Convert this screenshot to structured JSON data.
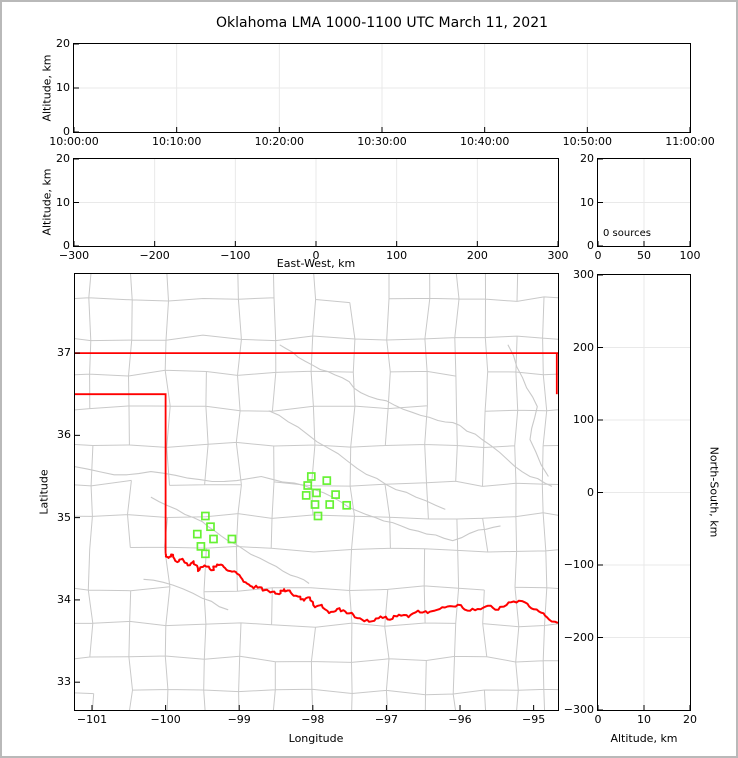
{
  "title": "Oklahoma LMA 1000-1100 UTC March 11, 2021",
  "colors": {
    "spine": "#000000",
    "grid": "#e9e9e9",
    "county": "#c9c9c9",
    "river": "#c9c9c9",
    "state_border": "#ff0000",
    "marker": "#66f233",
    "frame_border": "#b9b9b9"
  },
  "panels": {
    "time_height": {
      "ylabel": "Altitude, km",
      "xticks": [
        "10:00:00",
        "10:10:00",
        "10:20:00",
        "10:30:00",
        "10:40:00",
        "10:50:00",
        "11:00:00"
      ],
      "yticks": [
        0,
        10,
        20
      ]
    },
    "ew_height": {
      "xlabel": "East-West, km",
      "ylabel": "Altitude, km",
      "xticks": [
        -300,
        -200,
        -100,
        0,
        100,
        200,
        300
      ],
      "yticks": [
        0,
        10,
        20
      ]
    },
    "alt_hist": {
      "annotation": "0 sources",
      "xticks": [
        0,
        50,
        100
      ],
      "yticks": [
        0,
        10,
        20
      ]
    },
    "map": {
      "xlabel": "Longitude",
      "ylabel": "Latitude",
      "xticks": [
        -101,
        -100,
        -99,
        -98,
        -97,
        -96,
        -95
      ],
      "yticks": [
        33,
        34,
        35,
        36,
        37
      ],
      "extent": {
        "lon_min": -101.231,
        "lon_max": -94.669,
        "lat_min": 32.662,
        "lat_max": 37.961
      }
    },
    "ns_height": {
      "xlabel": "Altitude, km",
      "ylabel": "North-South, km",
      "xticks": [
        0,
        10,
        20
      ],
      "yticks": [
        300,
        200,
        100,
        0,
        -100,
        -200,
        -300
      ]
    }
  },
  "map_layers": {
    "counties": {
      "type": "procedural-grid",
      "seed": 20210311,
      "color": "#c9c9c9"
    },
    "state_border": [
      [
        [
          -101.231,
          37.0
        ],
        [
          -94.669,
          37.0
        ]
      ],
      [
        [
          -101.231,
          36.5
        ],
        [
          -100.0,
          36.5
        ],
        [
          -100.0,
          34.563
        ]
      ],
      [
        [
          -94.685,
          37.0
        ],
        [
          -94.685,
          36.5
        ]
      ]
    ],
    "red_river": [
      [
        -100.0,
        34.563
      ],
      [
        -99.96,
        34.51
      ],
      [
        -99.9,
        34.55
      ],
      [
        -99.84,
        34.46
      ],
      [
        -99.77,
        34.5
      ],
      [
        -99.7,
        34.42
      ],
      [
        -99.62,
        34.47
      ],
      [
        -99.56,
        34.35
      ],
      [
        -99.47,
        34.42
      ],
      [
        -99.38,
        34.36
      ],
      [
        -99.3,
        34.43
      ],
      [
        -99.21,
        34.4
      ],
      [
        -99.12,
        34.35
      ],
      [
        -99.03,
        34.32
      ],
      [
        -98.94,
        34.22
      ],
      [
        -98.85,
        34.17
      ],
      [
        -98.75,
        34.15
      ],
      [
        -98.65,
        34.12
      ],
      [
        -98.55,
        34.1
      ],
      [
        -98.46,
        34.07
      ],
      [
        -98.39,
        34.13
      ],
      [
        -98.3,
        34.09
      ],
      [
        -98.2,
        34.04
      ],
      [
        -98.12,
        33.99
      ],
      [
        -98.04,
        34.03
      ],
      [
        -97.97,
        33.91
      ],
      [
        -97.88,
        33.94
      ],
      [
        -97.78,
        33.84
      ],
      [
        -97.67,
        33.89
      ],
      [
        -97.56,
        33.86
      ],
      [
        -97.45,
        33.82
      ],
      [
        -97.33,
        33.76
      ],
      [
        -97.2,
        33.74
      ],
      [
        -97.08,
        33.8
      ],
      [
        -96.95,
        33.76
      ],
      [
        -96.83,
        33.82
      ],
      [
        -96.7,
        33.79
      ],
      [
        -96.57,
        33.87
      ],
      [
        -96.44,
        33.84
      ],
      [
        -96.31,
        33.88
      ],
      [
        -96.17,
        33.92
      ],
      [
        -96.03,
        33.94
      ],
      [
        -95.9,
        33.87
      ],
      [
        -95.76,
        33.89
      ],
      [
        -95.62,
        33.93
      ],
      [
        -95.48,
        33.88
      ],
      [
        -95.34,
        33.97
      ],
      [
        -95.2,
        33.99
      ],
      [
        -95.06,
        33.92
      ],
      [
        -94.93,
        33.86
      ],
      [
        -94.82,
        33.79
      ],
      [
        -94.67,
        33.72
      ]
    ],
    "rivers": [
      [
        [
          -98.45,
          37.1
        ],
        [
          -98.2,
          36.95
        ],
        [
          -97.9,
          36.8
        ],
        [
          -97.6,
          36.7
        ],
        [
          -97.35,
          36.52
        ],
        [
          -97.0,
          36.42
        ],
        [
          -96.65,
          36.28
        ],
        [
          -96.3,
          36.18
        ],
        [
          -96.0,
          36.12
        ]
      ],
      [
        [
          -96.0,
          36.12
        ],
        [
          -95.7,
          35.95
        ],
        [
          -95.35,
          35.7
        ],
        [
          -95.05,
          35.5
        ],
        [
          -94.75,
          35.38
        ]
      ],
      [
        [
          -101.24,
          35.62
        ],
        [
          -100.7,
          35.52
        ],
        [
          -100.2,
          35.56
        ],
        [
          -99.7,
          35.48
        ],
        [
          -99.2,
          35.44
        ],
        [
          -98.7,
          35.5
        ],
        [
          -98.25,
          35.42
        ],
        [
          -97.85,
          35.3
        ],
        [
          -97.5,
          35.12
        ],
        [
          -97.15,
          35.0
        ],
        [
          -96.8,
          34.9
        ],
        [
          -96.45,
          34.8
        ],
        [
          -96.1,
          34.72
        ],
        [
          -95.75,
          34.85
        ],
        [
          -95.45,
          34.9
        ]
      ],
      [
        [
          -100.2,
          35.25
        ],
        [
          -99.85,
          35.1
        ],
        [
          -99.5,
          34.95
        ],
        [
          -99.25,
          34.78
        ],
        [
          -98.95,
          34.62
        ],
        [
          -98.6,
          34.45
        ],
        [
          -98.3,
          34.3
        ],
        [
          -98.05,
          34.2
        ]
      ],
      [
        [
          -95.35,
          37.1
        ],
        [
          -95.15,
          36.7
        ],
        [
          -94.95,
          36.35
        ],
        [
          -95.05,
          35.95
        ],
        [
          -94.8,
          35.5
        ]
      ],
      [
        [
          -100.3,
          34.25
        ],
        [
          -99.9,
          34.18
        ],
        [
          -99.5,
          34.02
        ],
        [
          -99.15,
          33.88
        ]
      ],
      [
        [
          -98.6,
          36.3
        ],
        [
          -98.2,
          36.1
        ],
        [
          -97.8,
          35.85
        ],
        [
          -97.4,
          35.6
        ],
        [
          -97.0,
          35.4
        ],
        [
          -96.6,
          35.25
        ],
        [
          -96.2,
          35.1
        ]
      ]
    ]
  },
  "chart_data": [
    {
      "id": "alt_time",
      "type": "scatter",
      "title": "Oklahoma LMA 1000-1100 UTC March 11, 2021",
      "ylabel": "Altitude, km",
      "x_tick_labels": [
        "10:00:00",
        "10:10:00",
        "10:20:00",
        "10:30:00",
        "10:40:00",
        "10:50:00",
        "11:00:00"
      ],
      "ylim": [
        0,
        20
      ],
      "grid": true,
      "points": []
    },
    {
      "id": "alt_ew",
      "type": "scatter",
      "xlabel": "East-West, km",
      "ylabel": "Altitude, km",
      "xlim": [
        -300,
        300
      ],
      "ylim": [
        0,
        20
      ],
      "grid": true,
      "points": []
    },
    {
      "id": "alt_hist",
      "type": "line",
      "annotation": "0 sources",
      "xlim": [
        0,
        100
      ],
      "ylim": [
        0,
        20
      ],
      "grid": true,
      "points": []
    },
    {
      "id": "plan_view",
      "type": "scatter",
      "xlabel": "Longitude",
      "ylabel": "Latitude",
      "xlim": [
        -101.231,
        -94.669
      ],
      "ylim": [
        32.662,
        37.961
      ],
      "grid": false,
      "marker": "open-square",
      "marker_color": "#66f233",
      "points": [
        [
          -98.02,
          35.5
        ],
        [
          -97.81,
          35.45
        ],
        [
          -98.07,
          35.39
        ],
        [
          -98.09,
          35.27
        ],
        [
          -97.95,
          35.3
        ],
        [
          -97.69,
          35.28
        ],
        [
          -97.97,
          35.16
        ],
        [
          -97.77,
          35.16
        ],
        [
          -97.54,
          35.15
        ],
        [
          -97.93,
          35.02
        ],
        [
          -99.46,
          35.02
        ],
        [
          -99.39,
          34.89
        ],
        [
          -99.57,
          34.8
        ],
        [
          -99.35,
          34.74
        ],
        [
          -99.1,
          34.74
        ],
        [
          -99.52,
          34.65
        ],
        [
          -99.46,
          34.56
        ]
      ]
    },
    {
      "id": "alt_ns",
      "type": "scatter",
      "xlabel": "Altitude, km",
      "ylabel": "North-South, km",
      "xlim": [
        0,
        20
      ],
      "ylim": [
        -300,
        300
      ],
      "grid": true,
      "points": []
    }
  ]
}
